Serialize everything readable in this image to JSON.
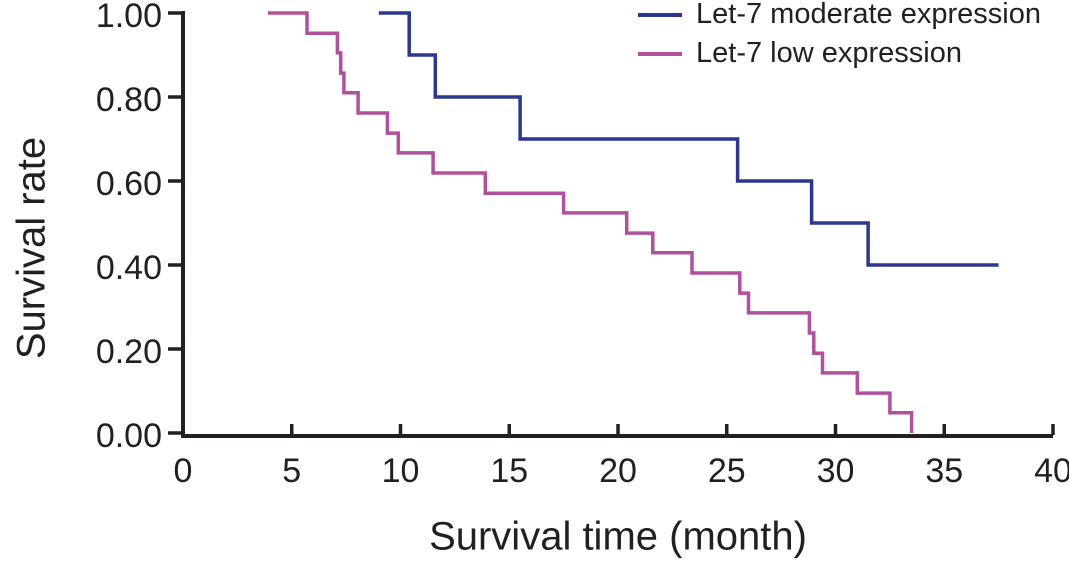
{
  "chart_data": {
    "type": "line",
    "subtype": "kaplan-meier-step",
    "title": "",
    "xlabel": "Survival time (month)",
    "ylabel": "Survival rate",
    "xlim": [
      0,
      40
    ],
    "ylim": [
      0.0,
      1.0
    ],
    "xticks": [
      "0",
      "5",
      "10",
      "15",
      "20",
      "25",
      "30",
      "35",
      "40"
    ],
    "yticks": [
      "1.00",
      "0.80",
      "0.60",
      "0.40",
      "0.20",
      "0.00"
    ],
    "grid": false,
    "legend_position": "top-right",
    "axis_color": "#231f20",
    "series": [
      {
        "name": "Let-7 moderate expression",
        "color": "#2b3690",
        "points": [
          [
            9.0,
            1.0
          ],
          [
            10.4,
            1.0
          ],
          [
            10.4,
            0.9
          ],
          [
            11.6,
            0.9
          ],
          [
            11.6,
            0.8
          ],
          [
            15.5,
            0.8
          ],
          [
            15.5,
            0.7
          ],
          [
            25.5,
            0.7
          ],
          [
            25.5,
            0.6
          ],
          [
            28.9,
            0.6
          ],
          [
            28.9,
            0.5
          ],
          [
            31.5,
            0.5
          ],
          [
            31.5,
            0.4
          ],
          [
            37.5,
            0.4
          ]
        ]
      },
      {
        "name": "Let-7 low expression",
        "color": "#b2509e",
        "points": [
          [
            3.9,
            1.0
          ],
          [
            5.7,
            1.0
          ],
          [
            5.7,
            0.952
          ],
          [
            7.1,
            0.952
          ],
          [
            7.1,
            0.905
          ],
          [
            7.25,
            0.905
          ],
          [
            7.25,
            0.857
          ],
          [
            7.4,
            0.857
          ],
          [
            7.4,
            0.81
          ],
          [
            8.05,
            0.81
          ],
          [
            8.05,
            0.762
          ],
          [
            9.4,
            0.762
          ],
          [
            9.4,
            0.714
          ],
          [
            9.9,
            0.714
          ],
          [
            9.9,
            0.667
          ],
          [
            11.5,
            0.667
          ],
          [
            11.5,
            0.619
          ],
          [
            13.9,
            0.619
          ],
          [
            13.9,
            0.571
          ],
          [
            17.5,
            0.571
          ],
          [
            17.5,
            0.524
          ],
          [
            20.4,
            0.524
          ],
          [
            20.4,
            0.476
          ],
          [
            21.6,
            0.476
          ],
          [
            21.6,
            0.429
          ],
          [
            23.4,
            0.429
          ],
          [
            23.4,
            0.381
          ],
          [
            25.6,
            0.381
          ],
          [
            25.6,
            0.333
          ],
          [
            26.0,
            0.333
          ],
          [
            26.0,
            0.286
          ],
          [
            28.8,
            0.286
          ],
          [
            28.8,
            0.238
          ],
          [
            29.0,
            0.238
          ],
          [
            29.0,
            0.19
          ],
          [
            29.4,
            0.19
          ],
          [
            29.4,
            0.143
          ],
          [
            31.0,
            0.143
          ],
          [
            31.0,
            0.095
          ],
          [
            32.5,
            0.095
          ],
          [
            32.5,
            0.048
          ],
          [
            33.5,
            0.048
          ],
          [
            33.5,
            0.0
          ]
        ]
      }
    ]
  }
}
